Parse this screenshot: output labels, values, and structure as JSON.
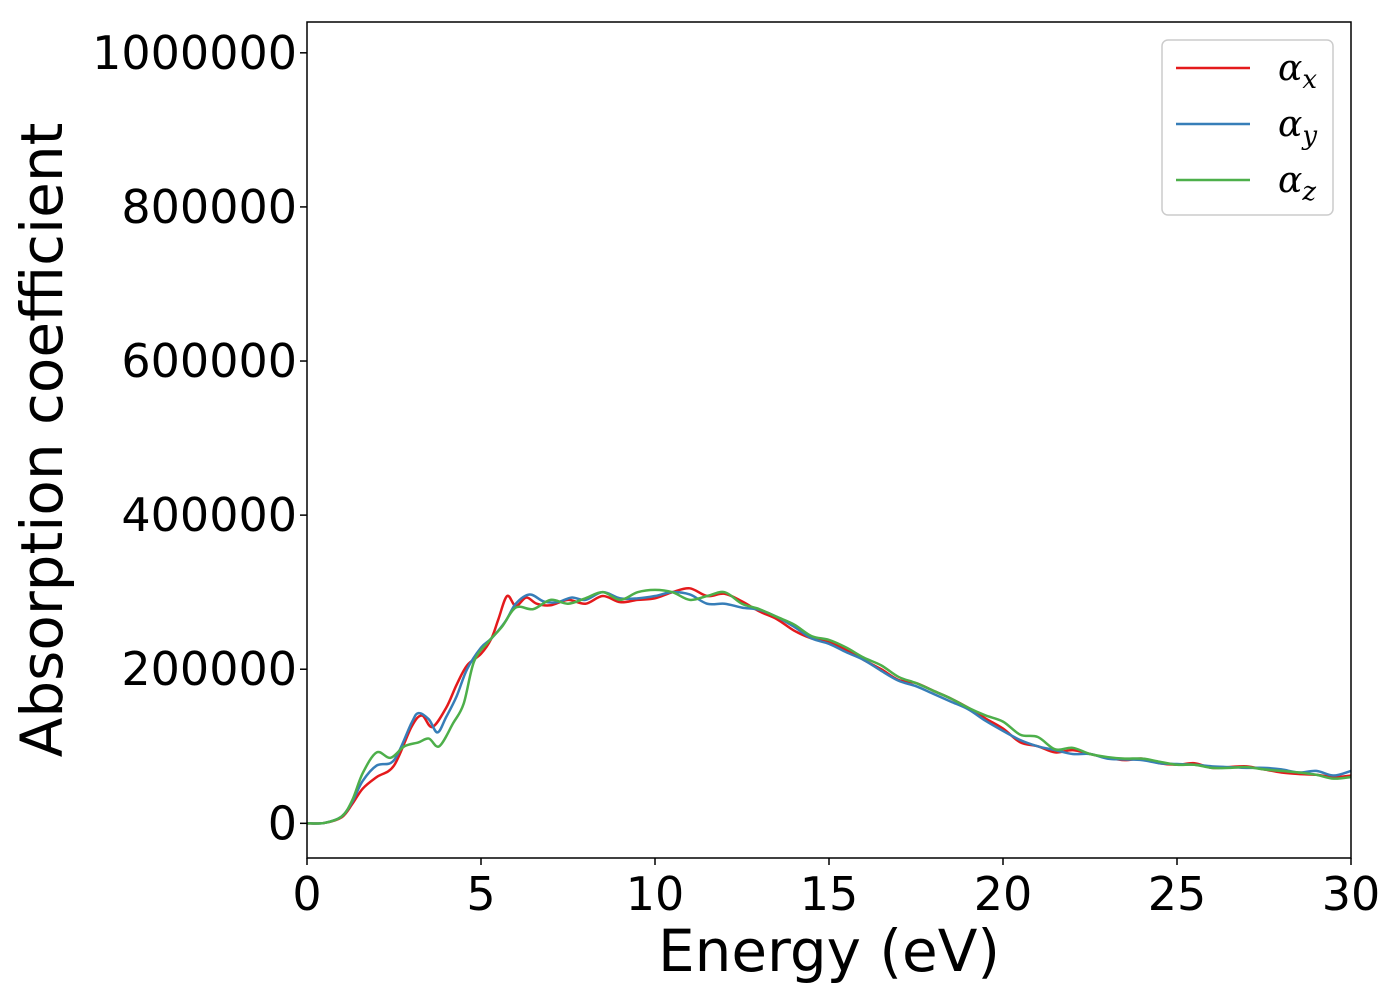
{
  "chart_data": {
    "type": "line",
    "title": "",
    "xlabel": "Energy (eV)",
    "ylabel": "Absorption coefficient",
    "xlim": [
      0,
      30
    ],
    "ylim": [
      -45000,
      1040000
    ],
    "xticks": [
      0,
      5,
      10,
      15,
      20,
      25,
      30
    ],
    "yticks": [
      0,
      200000,
      400000,
      600000,
      800000,
      1000000
    ],
    "grid": false,
    "legend_position": "top-right",
    "series": [
      {
        "name": "α",
        "subscript": "x",
        "color": "#e41a1c",
        "points": [
          [
            0,
            0
          ],
          [
            0.5,
            500
          ],
          [
            1,
            8000
          ],
          [
            1.3,
            25000
          ],
          [
            1.6,
            45000
          ],
          [
            2,
            60000
          ],
          [
            2.5,
            75000
          ],
          [
            3,
            125000
          ],
          [
            3.3,
            140000
          ],
          [
            3.6,
            125000
          ],
          [
            4,
            150000
          ],
          [
            4.3,
            180000
          ],
          [
            4.6,
            205000
          ],
          [
            5,
            220000
          ],
          [
            5.3,
            240000
          ],
          [
            5.5,
            265000
          ],
          [
            5.75,
            295000
          ],
          [
            6,
            282000
          ],
          [
            6.3,
            293000
          ],
          [
            6.6,
            285000
          ],
          [
            7,
            283000
          ],
          [
            7.5,
            290000
          ],
          [
            8,
            285000
          ],
          [
            8.5,
            295000
          ],
          [
            9,
            287000
          ],
          [
            9.5,
            290000
          ],
          [
            10,
            292000
          ],
          [
            10.5,
            300000
          ],
          [
            11,
            305000
          ],
          [
            11.5,
            295000
          ],
          [
            12,
            298000
          ],
          [
            12.5,
            288000
          ],
          [
            13,
            275000
          ],
          [
            13.5,
            265000
          ],
          [
            14,
            250000
          ],
          [
            14.5,
            240000
          ],
          [
            15,
            235000
          ],
          [
            15.5,
            225000
          ],
          [
            16,
            212000
          ],
          [
            16.5,
            200000
          ],
          [
            17,
            186000
          ],
          [
            17.5,
            182000
          ],
          [
            18,
            172000
          ],
          [
            18.5,
            162000
          ],
          [
            19,
            150000
          ],
          [
            19.5,
            136000
          ],
          [
            20,
            123000
          ],
          [
            20.5,
            105000
          ],
          [
            21,
            100000
          ],
          [
            21.5,
            92000
          ],
          [
            22,
            95000
          ],
          [
            22.5,
            90000
          ],
          [
            23,
            85000
          ],
          [
            23.5,
            82000
          ],
          [
            24,
            84000
          ],
          [
            24.5,
            78000
          ],
          [
            25,
            76000
          ],
          [
            25.5,
            78000
          ],
          [
            26,
            72000
          ],
          [
            26.5,
            73000
          ],
          [
            27,
            74000
          ],
          [
            27.5,
            70000
          ],
          [
            28,
            66000
          ],
          [
            28.5,
            64000
          ],
          [
            29,
            63000
          ],
          [
            29.5,
            60000
          ],
          [
            30,
            62000
          ]
        ]
      },
      {
        "name": "α",
        "subscript": "y",
        "color": "#377eb8",
        "points": [
          [
            0,
            0
          ],
          [
            0.5,
            500
          ],
          [
            1,
            9000
          ],
          [
            1.3,
            28000
          ],
          [
            1.6,
            55000
          ],
          [
            2,
            75000
          ],
          [
            2.5,
            82000
          ],
          [
            3,
            130000
          ],
          [
            3.2,
            143000
          ],
          [
            3.5,
            135000
          ],
          [
            3.75,
            118000
          ],
          [
            4,
            138000
          ],
          [
            4.3,
            165000
          ],
          [
            4.6,
            200000
          ],
          [
            5,
            228000
          ],
          [
            5.3,
            240000
          ],
          [
            5.7,
            262000
          ],
          [
            6,
            285000
          ],
          [
            6.4,
            297000
          ],
          [
            6.8,
            288000
          ],
          [
            7.2,
            287000
          ],
          [
            7.6,
            293000
          ],
          [
            8,
            290000
          ],
          [
            8.5,
            300000
          ],
          [
            9,
            292000
          ],
          [
            9.5,
            292000
          ],
          [
            10,
            295000
          ],
          [
            10.5,
            300000
          ],
          [
            11,
            297000
          ],
          [
            11.5,
            285000
          ],
          [
            12,
            285000
          ],
          [
            12.5,
            280000
          ],
          [
            13,
            277000
          ],
          [
            13.5,
            268000
          ],
          [
            14,
            255000
          ],
          [
            14.5,
            240000
          ],
          [
            15,
            233000
          ],
          [
            15.5,
            222000
          ],
          [
            16,
            212000
          ],
          [
            16.5,
            198000
          ],
          [
            17,
            185000
          ],
          [
            17.5,
            178000
          ],
          [
            18,
            168000
          ],
          [
            18.5,
            158000
          ],
          [
            19,
            148000
          ],
          [
            19.5,
            133000
          ],
          [
            20,
            120000
          ],
          [
            20.5,
            108000
          ],
          [
            21,
            100000
          ],
          [
            21.5,
            95000
          ],
          [
            22,
            90000
          ],
          [
            22.5,
            90000
          ],
          [
            23,
            84000
          ],
          [
            23.5,
            83000
          ],
          [
            24,
            82000
          ],
          [
            24.5,
            78000
          ],
          [
            25,
            77000
          ],
          [
            25.5,
            76000
          ],
          [
            26,
            74000
          ],
          [
            26.5,
            73000
          ],
          [
            27,
            72000
          ],
          [
            27.5,
            72000
          ],
          [
            28,
            70000
          ],
          [
            28.5,
            66000
          ],
          [
            29,
            68000
          ],
          [
            29.5,
            62000
          ],
          [
            30,
            68000
          ]
        ]
      },
      {
        "name": "α",
        "subscript": "z",
        "color": "#4daf4a",
        "points": [
          [
            0,
            0
          ],
          [
            0.5,
            500
          ],
          [
            1,
            9000
          ],
          [
            1.3,
            30000
          ],
          [
            1.6,
            65000
          ],
          [
            2,
            92000
          ],
          [
            2.4,
            85000
          ],
          [
            2.8,
            100000
          ],
          [
            3.2,
            105000
          ],
          [
            3.5,
            110000
          ],
          [
            3.8,
            100000
          ],
          [
            4.2,
            130000
          ],
          [
            4.5,
            155000
          ],
          [
            4.8,
            210000
          ],
          [
            5.2,
            235000
          ],
          [
            5.6,
            255000
          ],
          [
            6,
            280000
          ],
          [
            6.5,
            278000
          ],
          [
            7,
            290000
          ],
          [
            7.5,
            285000
          ],
          [
            8,
            292000
          ],
          [
            8.5,
            300000
          ],
          [
            9,
            290000
          ],
          [
            9.5,
            300000
          ],
          [
            10,
            303000
          ],
          [
            10.5,
            300000
          ],
          [
            11,
            290000
          ],
          [
            11.5,
            295000
          ],
          [
            12,
            300000
          ],
          [
            12.5,
            285000
          ],
          [
            13,
            278000
          ],
          [
            13.5,
            268000
          ],
          [
            14,
            258000
          ],
          [
            14.5,
            243000
          ],
          [
            15,
            238000
          ],
          [
            15.5,
            228000
          ],
          [
            16,
            215000
          ],
          [
            16.5,
            205000
          ],
          [
            17,
            190000
          ],
          [
            17.5,
            182000
          ],
          [
            18,
            172000
          ],
          [
            18.5,
            162000
          ],
          [
            19,
            150000
          ],
          [
            19.5,
            140000
          ],
          [
            20,
            132000
          ],
          [
            20.5,
            115000
          ],
          [
            21,
            112000
          ],
          [
            21.5,
            96000
          ],
          [
            22,
            98000
          ],
          [
            22.5,
            90000
          ],
          [
            23,
            86000
          ],
          [
            23.5,
            84000
          ],
          [
            24,
            84000
          ],
          [
            24.5,
            80000
          ],
          [
            25,
            76000
          ],
          [
            25.5,
            76000
          ],
          [
            26,
            72000
          ],
          [
            26.5,
            72000
          ],
          [
            27,
            73000
          ],
          [
            27.5,
            70000
          ],
          [
            28,
            68000
          ],
          [
            28.5,
            66000
          ],
          [
            29,
            63000
          ],
          [
            29.5,
            58000
          ],
          [
            30,
            60000
          ]
        ]
      }
    ]
  }
}
